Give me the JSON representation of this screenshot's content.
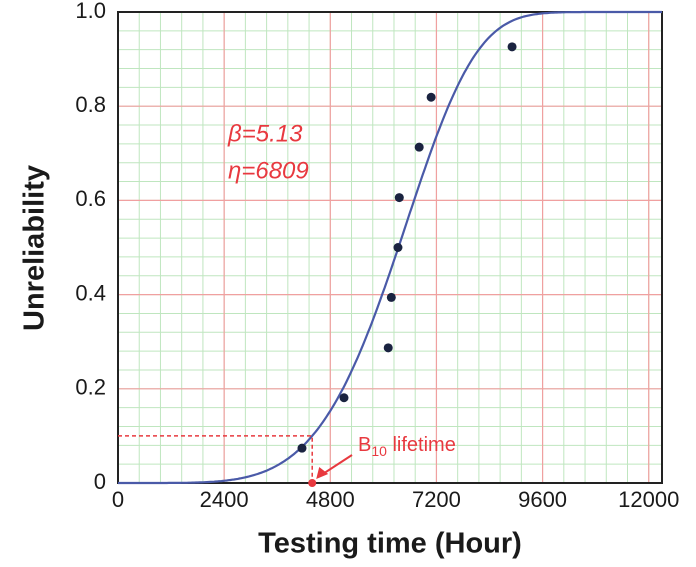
{
  "chart_data": {
    "type": "scatter",
    "x_label": "Testing time (Hour)",
    "y_label": "Unreliability",
    "xlim": [
      0,
      12300
    ],
    "ylim": [
      0,
      1
    ],
    "xticks": [
      0,
      2400,
      4800,
      7200,
      9600,
      12000
    ],
    "yticks": [
      0,
      0.2,
      0.4,
      0.6,
      0.8,
      {
        "value": 1,
        "label": "1.0"
      }
    ],
    "grid": true,
    "series": [
      {
        "color": "#1a2340",
        "x": [
          4160,
          5110,
          6110,
          6180,
          6330,
          6360,
          6810,
          7080,
          8910
        ],
        "values": [
          0.074,
          0.181,
          0.287,
          0.394,
          0.5,
          0.606,
          0.713,
          0.819,
          0.926
        ]
      }
    ],
    "fit": {
      "color": "#4a5aa8",
      "beta": 5.13,
      "eta": 6809,
      "labels": [
        "β=5.13",
        "η=6809"
      ]
    },
    "b10": {
      "color": "#e8393f",
      "base": "B",
      "sub": "10",
      "text": " lifetime"
    }
  }
}
